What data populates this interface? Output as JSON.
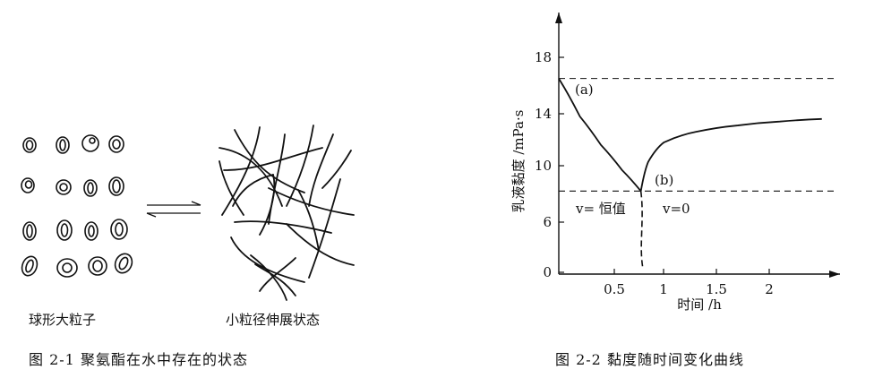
{
  "figure1": {
    "left_label": "球形大粒子",
    "right_label": "小粒径伸展状态",
    "caption": "图 2-1   聚氨酯在水中存在的状态"
  },
  "figure2": {
    "caption": "图 2-2   黏度随时间变化曲线",
    "annotation_a": "(a)",
    "annotation_b": "(b)",
    "region_left": "v= 恒值",
    "region_right": "v=0",
    "chart_data": {
      "type": "line",
      "ylabel": "乳液黏度 /mPa·s",
      "xlabel": "时间 /h",
      "y_ticks": [
        "0",
        "6",
        "10",
        "14",
        "18"
      ],
      "x_ticks": [
        "0.5",
        "1",
        "1.5",
        "2"
      ],
      "series": [
        {
          "x": [
            0,
            0.2,
            0.4,
            0.6,
            0.78
          ],
          "y": [
            16.5,
            13.8,
            11.6,
            9.7,
            8.2
          ]
        },
        {
          "x": [
            0.78,
            0.85,
            1.0,
            1.3,
            1.7,
            2.1,
            2.5
          ],
          "y": [
            8.2,
            10.3,
            11.8,
            12.6,
            13.1,
            13.4,
            13.6
          ]
        }
      ],
      "reference_lines_y": [
        16.5,
        8.2
      ]
    }
  }
}
